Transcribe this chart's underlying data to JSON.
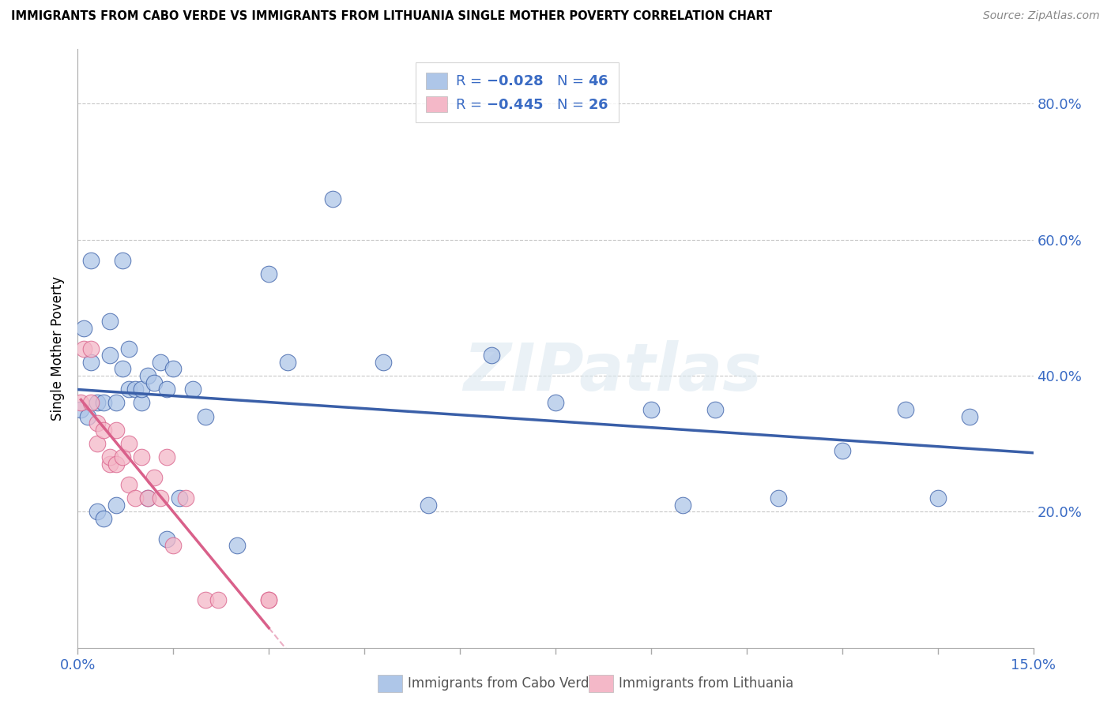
{
  "title": "IMMIGRANTS FROM CABO VERDE VS IMMIGRANTS FROM LITHUANIA SINGLE MOTHER POVERTY CORRELATION CHART",
  "source": "Source: ZipAtlas.com",
  "ylabel": "Single Mother Poverty",
  "y_ticks": [
    0.0,
    0.2,
    0.4,
    0.6,
    0.8
  ],
  "y_tick_labels": [
    "",
    "20.0%",
    "40.0%",
    "60.0%",
    "80.0%"
  ],
  "x_range": [
    0.0,
    0.15
  ],
  "y_range": [
    0.0,
    0.88
  ],
  "cabo_verde_R": -0.028,
  "cabo_verde_N": 46,
  "lithuania_R": -0.445,
  "lithuania_N": 26,
  "cabo_verde_color": "#aec6e8",
  "cabo_verde_line_color": "#3a5fa8",
  "lithuania_color": "#f4b8c8",
  "lithuania_line_color": "#d9608a",
  "legend_text_color": "#3a6bc4",
  "cabo_verde_x": [
    0.0005,
    0.001,
    0.0015,
    0.002,
    0.002,
    0.003,
    0.003,
    0.004,
    0.004,
    0.005,
    0.005,
    0.006,
    0.006,
    0.007,
    0.007,
    0.008,
    0.008,
    0.009,
    0.01,
    0.01,
    0.011,
    0.011,
    0.012,
    0.013,
    0.014,
    0.014,
    0.015,
    0.016,
    0.018,
    0.02,
    0.025,
    0.03,
    0.033,
    0.04,
    0.048,
    0.055,
    0.065,
    0.075,
    0.09,
    0.095,
    0.1,
    0.11,
    0.12,
    0.13,
    0.135,
    0.14
  ],
  "cabo_verde_y": [
    0.35,
    0.47,
    0.34,
    0.57,
    0.42,
    0.36,
    0.2,
    0.19,
    0.36,
    0.48,
    0.43,
    0.36,
    0.21,
    0.57,
    0.41,
    0.44,
    0.38,
    0.38,
    0.36,
    0.38,
    0.4,
    0.22,
    0.39,
    0.42,
    0.16,
    0.38,
    0.41,
    0.22,
    0.38,
    0.34,
    0.15,
    0.55,
    0.42,
    0.66,
    0.42,
    0.21,
    0.43,
    0.36,
    0.35,
    0.21,
    0.35,
    0.22,
    0.29,
    0.35,
    0.22,
    0.34
  ],
  "lithuania_x": [
    0.0005,
    0.001,
    0.002,
    0.002,
    0.003,
    0.003,
    0.004,
    0.005,
    0.005,
    0.006,
    0.006,
    0.007,
    0.008,
    0.008,
    0.009,
    0.01,
    0.011,
    0.012,
    0.013,
    0.014,
    0.015,
    0.017,
    0.02,
    0.022,
    0.03,
    0.03
  ],
  "lithuania_y": [
    0.36,
    0.44,
    0.36,
    0.44,
    0.33,
    0.3,
    0.32,
    0.27,
    0.28,
    0.27,
    0.32,
    0.28,
    0.24,
    0.3,
    0.22,
    0.28,
    0.22,
    0.25,
    0.22,
    0.28,
    0.15,
    0.22,
    0.07,
    0.07,
    0.07,
    0.07
  ],
  "watermark": "ZIPatlas",
  "background_color": "#ffffff",
  "grid_color": "#c8c8c8",
  "x_tick_positions": [
    0.0,
    0.015,
    0.03,
    0.045,
    0.06,
    0.075,
    0.09,
    0.105,
    0.12,
    0.135,
    0.15
  ]
}
